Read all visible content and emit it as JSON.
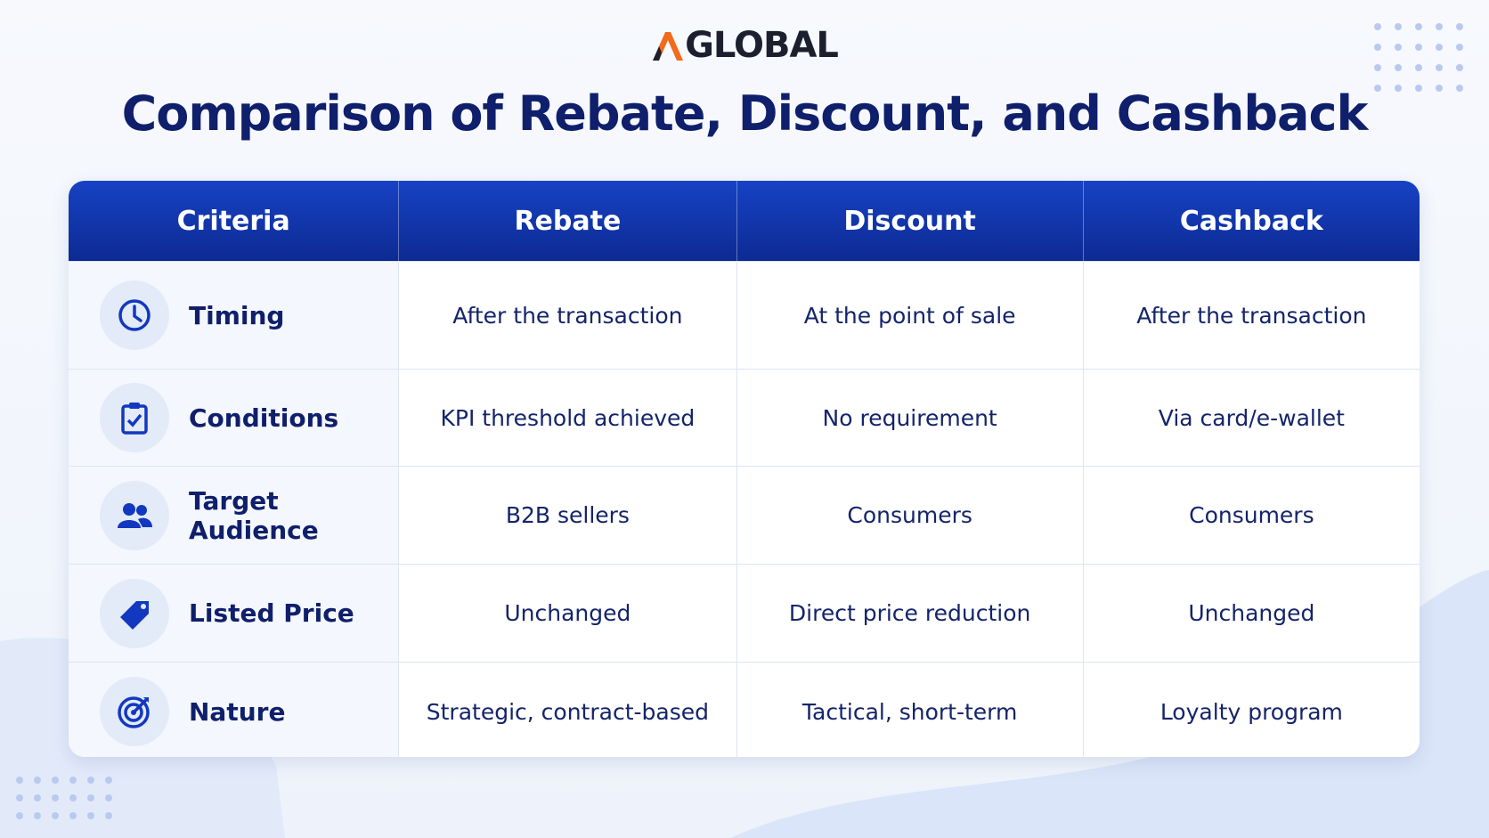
{
  "logo": "GLOBAL",
  "title": "Comparison of Rebate, Discount, and Cashback",
  "table": {
    "header": [
      "Criteria",
      "Rebate",
      "Discount",
      "Cashback"
    ],
    "rows": [
      [
        "Timing",
        "After the transaction",
        "At the point of sale",
        "After the transaction"
      ],
      [
        "Conditions",
        "KPI threshold achieved",
        "No requirement",
        "Via card/e-wallet"
      ],
      [
        "Target Audience",
        "B2B sellers",
        "Consumers",
        "Consumers"
      ],
      [
        "Listed Price",
        "Unchanged",
        "Direct price reduction",
        "Unchanged"
      ],
      [
        "Nature",
        "Strategic, contract-based",
        "Tactical, short-term",
        "Loyalty program"
      ]
    ]
  }
}
